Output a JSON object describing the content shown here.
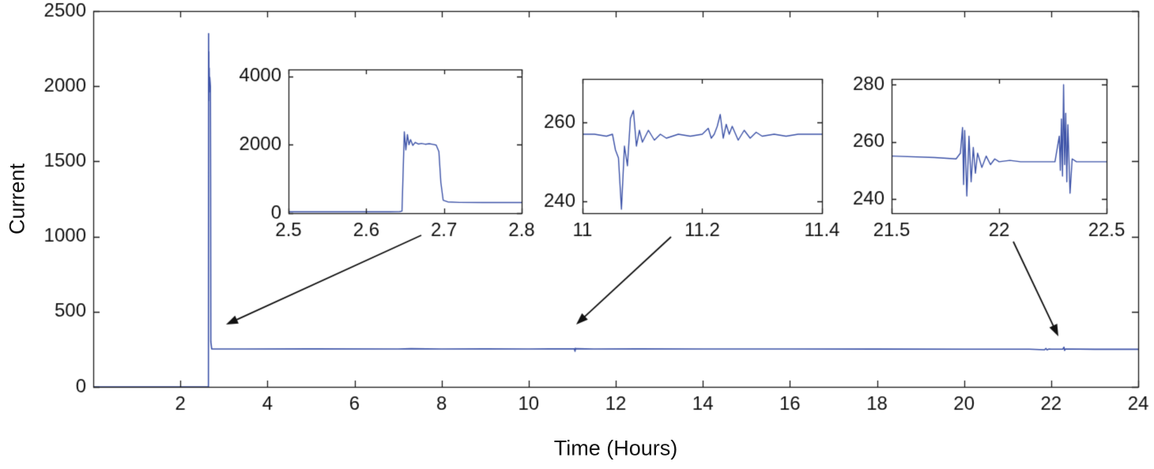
{
  "figure": {
    "xlabel": "Time (Hours)",
    "ylabel": "Current",
    "line_color": "#3d53a8",
    "axis_color": "#1a1a1a",
    "text_color": "#111111",
    "background": "#ffffff"
  },
  "chart_data": [
    {
      "id": "main",
      "type": "line",
      "title": "",
      "xlabel": "Time (Hours)",
      "ylabel": "Current",
      "xlim": [
        0,
        24
      ],
      "ylim": [
        0,
        2500
      ],
      "xticks": [
        2,
        4,
        6,
        8,
        10,
        12,
        14,
        16,
        18,
        20,
        22,
        24
      ],
      "xtick_labels": [
        "2",
        "4",
        "6",
        "8",
        "10",
        "12",
        "14",
        "16",
        "18",
        "20",
        "22",
        "24"
      ],
      "yticks": [
        0,
        500,
        1000,
        1500,
        2000,
        2500
      ],
      "ytick_labels": [
        "0",
        "500",
        "1000",
        "1500",
        "2000",
        "2500"
      ],
      "grid": false,
      "legend": "none",
      "points": [
        [
          0,
          0
        ],
        [
          2.6,
          0
        ],
        [
          2.645,
          0
        ],
        [
          2.649,
          2350
        ],
        [
          2.652,
          1900
        ],
        [
          2.655,
          2230
        ],
        [
          2.659,
          1960
        ],
        [
          2.663,
          2120
        ],
        [
          2.668,
          2010
        ],
        [
          2.675,
          2060
        ],
        [
          2.683,
          2030
        ],
        [
          2.69,
          2000
        ],
        [
          2.695,
          1400
        ],
        [
          2.7,
          300
        ],
        [
          2.72,
          253
        ],
        [
          3.5,
          252
        ],
        [
          5,
          252.5
        ],
        [
          7,
          252
        ],
        [
          7.3,
          254
        ],
        [
          8,
          252
        ],
        [
          9,
          253
        ],
        [
          10,
          252
        ],
        [
          10.5,
          252.5
        ],
        [
          11.05,
          253
        ],
        [
          11.065,
          237
        ],
        [
          11.075,
          257
        ],
        [
          11.085,
          251
        ],
        [
          11.1,
          254
        ],
        [
          11.5,
          252
        ],
        [
          12.5,
          252.5
        ],
        [
          14,
          252
        ],
        [
          16,
          252
        ],
        [
          18,
          251.5
        ],
        [
          20,
          251
        ],
        [
          21.5,
          251
        ],
        [
          21.85,
          247
        ],
        [
          21.88,
          256
        ],
        [
          21.91,
          246
        ],
        [
          21.95,
          252
        ],
        [
          22.0,
          251
        ],
        [
          22.27,
          251
        ],
        [
          22.295,
          264
        ],
        [
          22.31,
          243
        ],
        [
          22.33,
          252
        ],
        [
          23,
          250
        ],
        [
          24,
          250
        ]
      ]
    },
    {
      "id": "inset1",
      "type": "line",
      "title": "",
      "xlim": [
        2.5,
        2.8
      ],
      "ylim": [
        0,
        4200
      ],
      "xticks": [
        2.5,
        2.6,
        2.7,
        2.8
      ],
      "xtick_labels": [
        "2.5",
        "2.6",
        "2.7",
        "2.8"
      ],
      "yticks": [
        0,
        2000,
        4000
      ],
      "ytick_labels": [
        "0",
        "2000",
        "4000"
      ],
      "grid": false,
      "points": [
        [
          2.5,
          40
        ],
        [
          2.55,
          40
        ],
        [
          2.6,
          40
        ],
        [
          2.63,
          40
        ],
        [
          2.643,
          45
        ],
        [
          2.646,
          60
        ],
        [
          2.649,
          2380
        ],
        [
          2.651,
          1850
        ],
        [
          2.653,
          2300
        ],
        [
          2.655,
          2000
        ],
        [
          2.657,
          2150
        ],
        [
          2.66,
          1980
        ],
        [
          2.663,
          2070
        ],
        [
          2.667,
          2020
        ],
        [
          2.671,
          2040
        ],
        [
          2.676,
          2015
        ],
        [
          2.681,
          2030
        ],
        [
          2.686,
          2010
        ],
        [
          2.69,
          1990
        ],
        [
          2.6935,
          1800
        ],
        [
          2.696,
          900
        ],
        [
          2.699,
          380
        ],
        [
          2.705,
          330
        ],
        [
          2.72,
          315
        ],
        [
          2.75,
          312
        ],
        [
          2.8,
          310
        ]
      ]
    },
    {
      "id": "inset2",
      "type": "line",
      "title": "",
      "xlim": [
        11,
        11.4
      ],
      "ylim": [
        237,
        271
      ],
      "xticks": [
        11,
        11.2,
        11.4
      ],
      "xtick_labels": [
        "11",
        "11.2",
        "11.4"
      ],
      "yticks": [
        240,
        260
      ],
      "ytick_labels": [
        "240",
        "260"
      ],
      "grid": false,
      "points": [
        [
          11.0,
          257
        ],
        [
          11.02,
          257
        ],
        [
          11.04,
          256.5
        ],
        [
          11.05,
          257
        ],
        [
          11.055,
          253
        ],
        [
          11.06,
          251
        ],
        [
          11.065,
          238
        ],
        [
          11.07,
          254
        ],
        [
          11.075,
          249
        ],
        [
          11.08,
          261
        ],
        [
          11.085,
          263
        ],
        [
          11.09,
          254
        ],
        [
          11.095,
          258
        ],
        [
          11.1,
          255
        ],
        [
          11.11,
          258
        ],
        [
          11.12,
          255.5
        ],
        [
          11.13,
          257
        ],
        [
          11.14,
          256
        ],
        [
          11.16,
          257
        ],
        [
          11.18,
          256.5
        ],
        [
          11.2,
          257
        ],
        [
          11.21,
          258.5
        ],
        [
          11.215,
          256
        ],
        [
          11.22,
          257
        ],
        [
          11.225,
          259
        ],
        [
          11.23,
          262
        ],
        [
          11.235,
          256
        ],
        [
          11.24,
          259.5
        ],
        [
          11.245,
          257
        ],
        [
          11.25,
          259
        ],
        [
          11.26,
          255.5
        ],
        [
          11.27,
          258
        ],
        [
          11.28,
          256
        ],
        [
          11.29,
          257.5
        ],
        [
          11.3,
          256.5
        ],
        [
          11.32,
          257
        ],
        [
          11.34,
          256.5
        ],
        [
          11.36,
          257
        ],
        [
          11.38,
          257
        ],
        [
          11.4,
          257
        ]
      ]
    },
    {
      "id": "inset3",
      "type": "line",
      "title": "",
      "xlim": [
        21.5,
        22.5
      ],
      "ylim": [
        235,
        282
      ],
      "xticks": [
        21.5,
        22,
        22.5
      ],
      "xtick_labels": [
        "21.5",
        "22",
        "22.5"
      ],
      "yticks": [
        240,
        260,
        280
      ],
      "ytick_labels": [
        "240",
        "260",
        "280"
      ],
      "grid": false,
      "points": [
        [
          21.5,
          255
        ],
        [
          21.7,
          254.5
        ],
        [
          21.8,
          254
        ],
        [
          21.82,
          256
        ],
        [
          21.83,
          265
        ],
        [
          21.835,
          245
        ],
        [
          21.84,
          264
        ],
        [
          21.85,
          241
        ],
        [
          21.86,
          262
        ],
        [
          21.87,
          246
        ],
        [
          21.88,
          258
        ],
        [
          21.89,
          249
        ],
        [
          21.9,
          256
        ],
        [
          21.92,
          251
        ],
        [
          21.94,
          255
        ],
        [
          21.96,
          252
        ],
        [
          21.98,
          254
        ],
        [
          22.0,
          253
        ],
        [
          22.05,
          253.5
        ],
        [
          22.1,
          253
        ],
        [
          22.2,
          253
        ],
        [
          22.26,
          253
        ],
        [
          22.28,
          262
        ],
        [
          22.285,
          250
        ],
        [
          22.29,
          268
        ],
        [
          22.295,
          248
        ],
        [
          22.3,
          280
        ],
        [
          22.305,
          252
        ],
        [
          22.31,
          270
        ],
        [
          22.315,
          246
        ],
        [
          22.32,
          266
        ],
        [
          22.33,
          242
        ],
        [
          22.34,
          254
        ],
        [
          22.36,
          253
        ],
        [
          22.4,
          253
        ],
        [
          22.5,
          253
        ]
      ]
    }
  ],
  "annotations": {
    "arrows": [
      {
        "from": [
          533,
          298
        ],
        "to": [
          286,
          411
        ]
      },
      {
        "from": [
          849,
          300
        ],
        "to": [
          729,
          411
        ]
      },
      {
        "from": [
          1282,
          306
        ],
        "to": [
          1339,
          426
        ]
      }
    ]
  }
}
